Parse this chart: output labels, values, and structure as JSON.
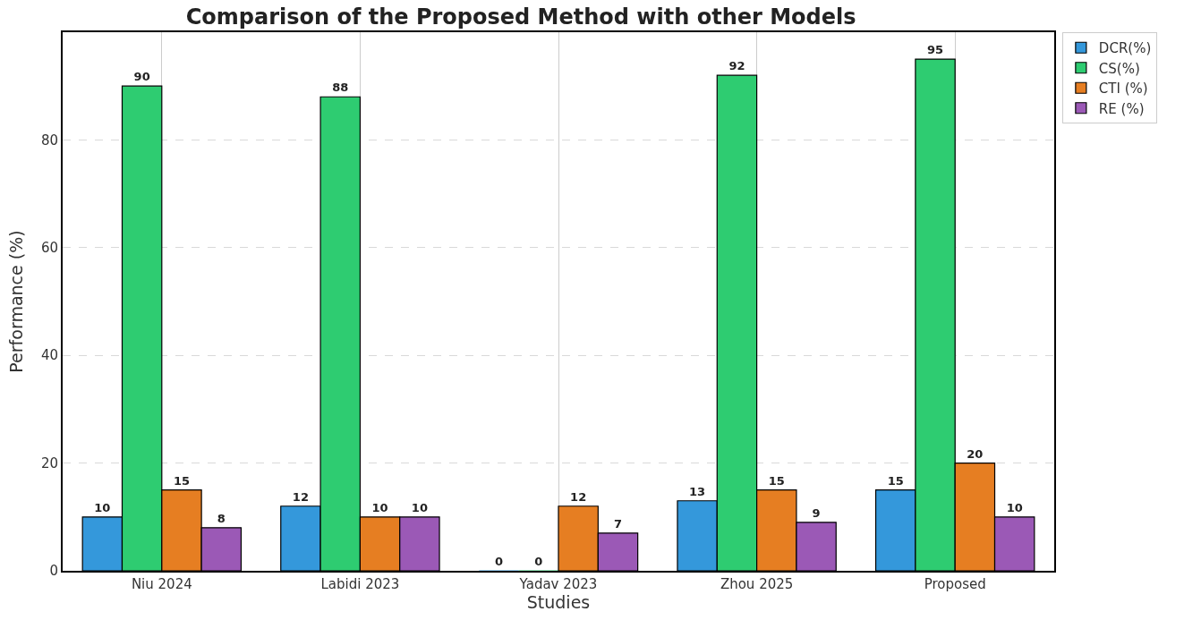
{
  "chart_data": {
    "type": "bar",
    "title": "Comparison of the Proposed Method with other Models",
    "xlabel": "Studies",
    "ylabel": "Performance (%)",
    "categories": [
      "Niu 2024",
      "Labidi 2023",
      "Yadav 2023",
      "Zhou 2025",
      "Proposed"
    ],
    "series": [
      {
        "name": "DCR(%)",
        "color": "#3498db",
        "values": [
          10,
          12,
          0,
          13,
          15
        ]
      },
      {
        "name": "CS(%)",
        "color": "#2ecc71",
        "values": [
          90,
          88,
          0,
          92,
          95
        ]
      },
      {
        "name": "CTI (%)",
        "color": "#e67e22",
        "values": [
          15,
          10,
          12,
          15,
          20
        ]
      },
      {
        "name": "RE (%)",
        "color": "#9b59b6",
        "values": [
          8,
          10,
          7,
          9,
          10
        ]
      }
    ],
    "ylim": [
      0,
      100
    ],
    "yticks": [
      0,
      20,
      40,
      60,
      80
    ],
    "grid": true,
    "legend": "top right",
    "data_labels": true
  }
}
